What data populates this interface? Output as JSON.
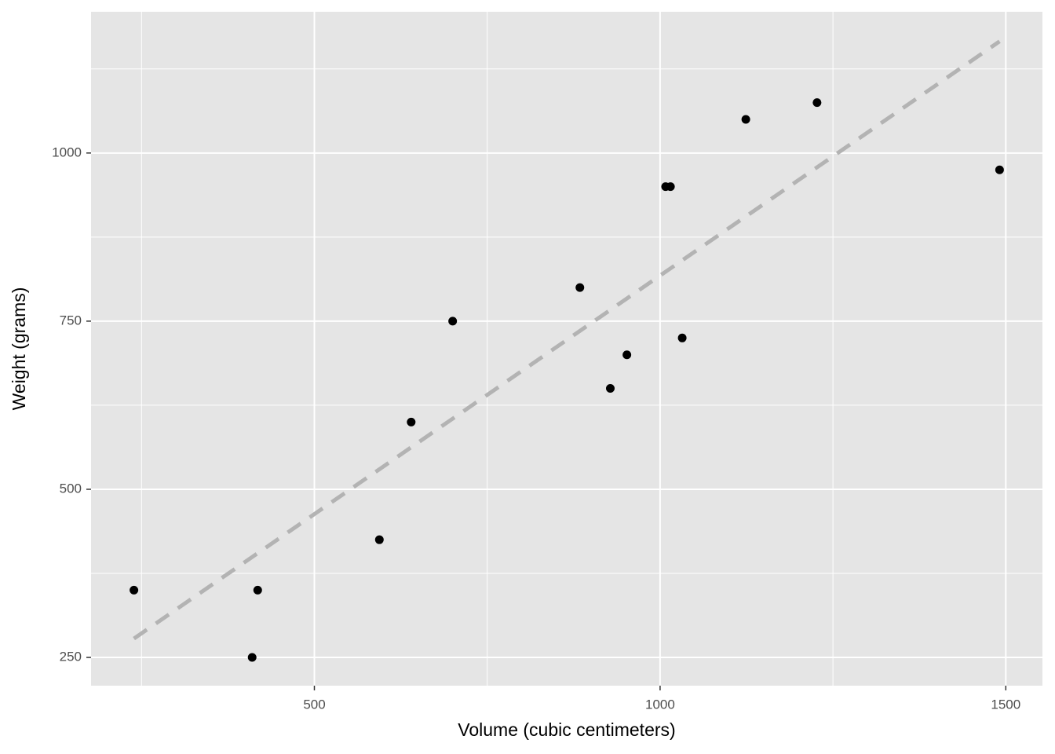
{
  "chart_data": {
    "type": "scatter",
    "x_label": "Volume (cubic centimeters)",
    "y_label": "Weight (grams)",
    "xlim": [
      177,
      1553
    ],
    "ylim": [
      208,
      1210
    ],
    "xticks": [
      500,
      1000,
      1500
    ],
    "yticks": [
      250,
      500,
      750,
      1000
    ],
    "x_minor_grid": [
      250,
      750,
      1250
    ],
    "y_minor_grid": [
      375,
      625,
      875,
      1125
    ],
    "grid": true,
    "series": [
      {
        "color": "#000000",
        "x": [
          239,
          410,
          418,
          594,
          640,
          700,
          884,
          928,
          952,
          1008,
          1015,
          1032,
          1124,
          1227,
          1491
        ],
        "values": [
          350,
          250,
          350,
          425,
          600,
          750,
          800,
          650,
          700,
          950,
          950,
          725,
          1050,
          1075,
          975
        ]
      }
    ],
    "trend": {
      "color": "#b3b3b3",
      "x": [
        239,
        1491
      ],
      "values": [
        278,
        1166
      ]
    }
  }
}
